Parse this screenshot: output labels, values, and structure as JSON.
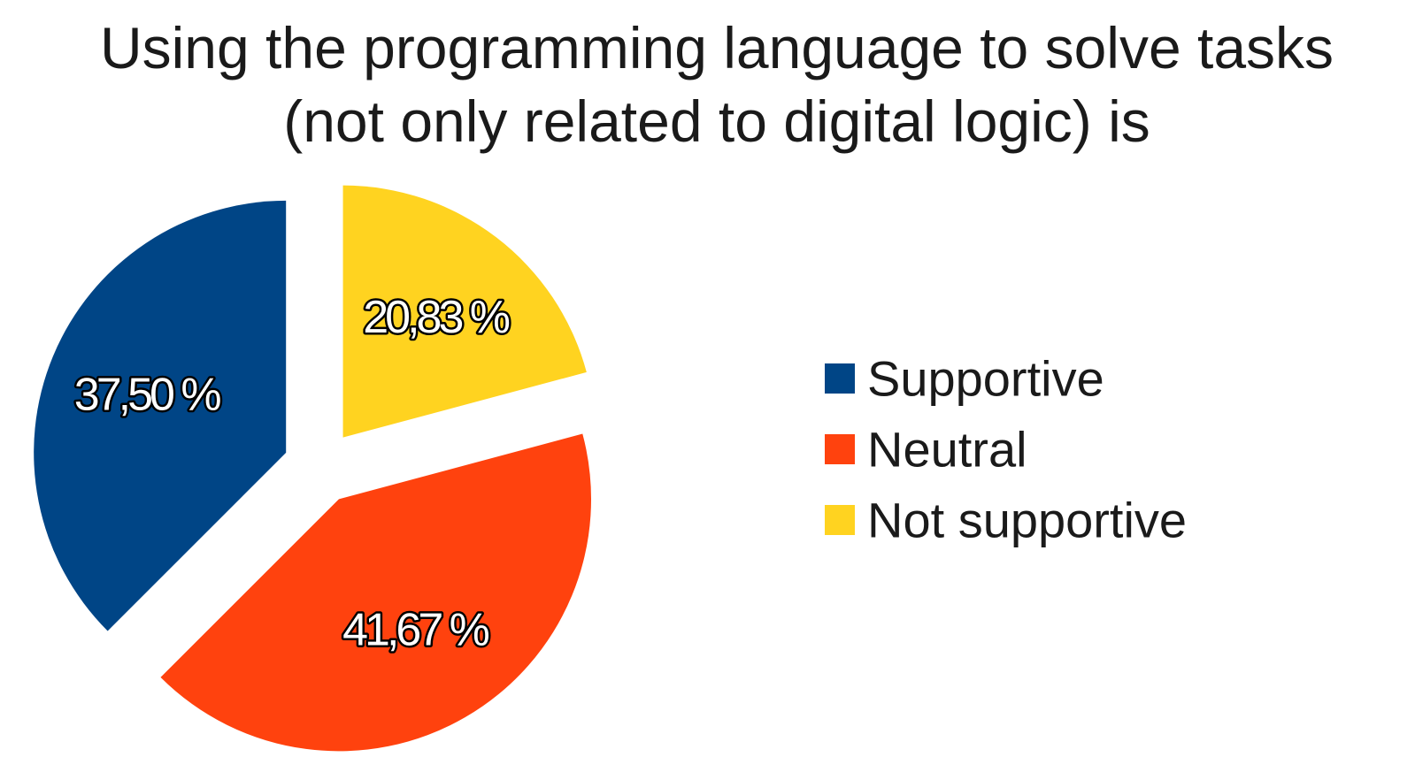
{
  "chart_data": {
    "type": "pie",
    "title_lines": [
      "Using the programming language to solve tasks",
      "(not only related to digital logic) is"
    ],
    "categories": [
      "Supportive",
      "Neutral",
      "Not supportive"
    ],
    "values": [
      37.5,
      41.67,
      20.83
    ],
    "value_labels": [
      "37,50 %",
      "41,67 %",
      "20,83 %"
    ],
    "colors": [
      "#004586",
      "#ff420e",
      "#ffd320"
    ],
    "exploded": true,
    "legend_position": "right"
  }
}
